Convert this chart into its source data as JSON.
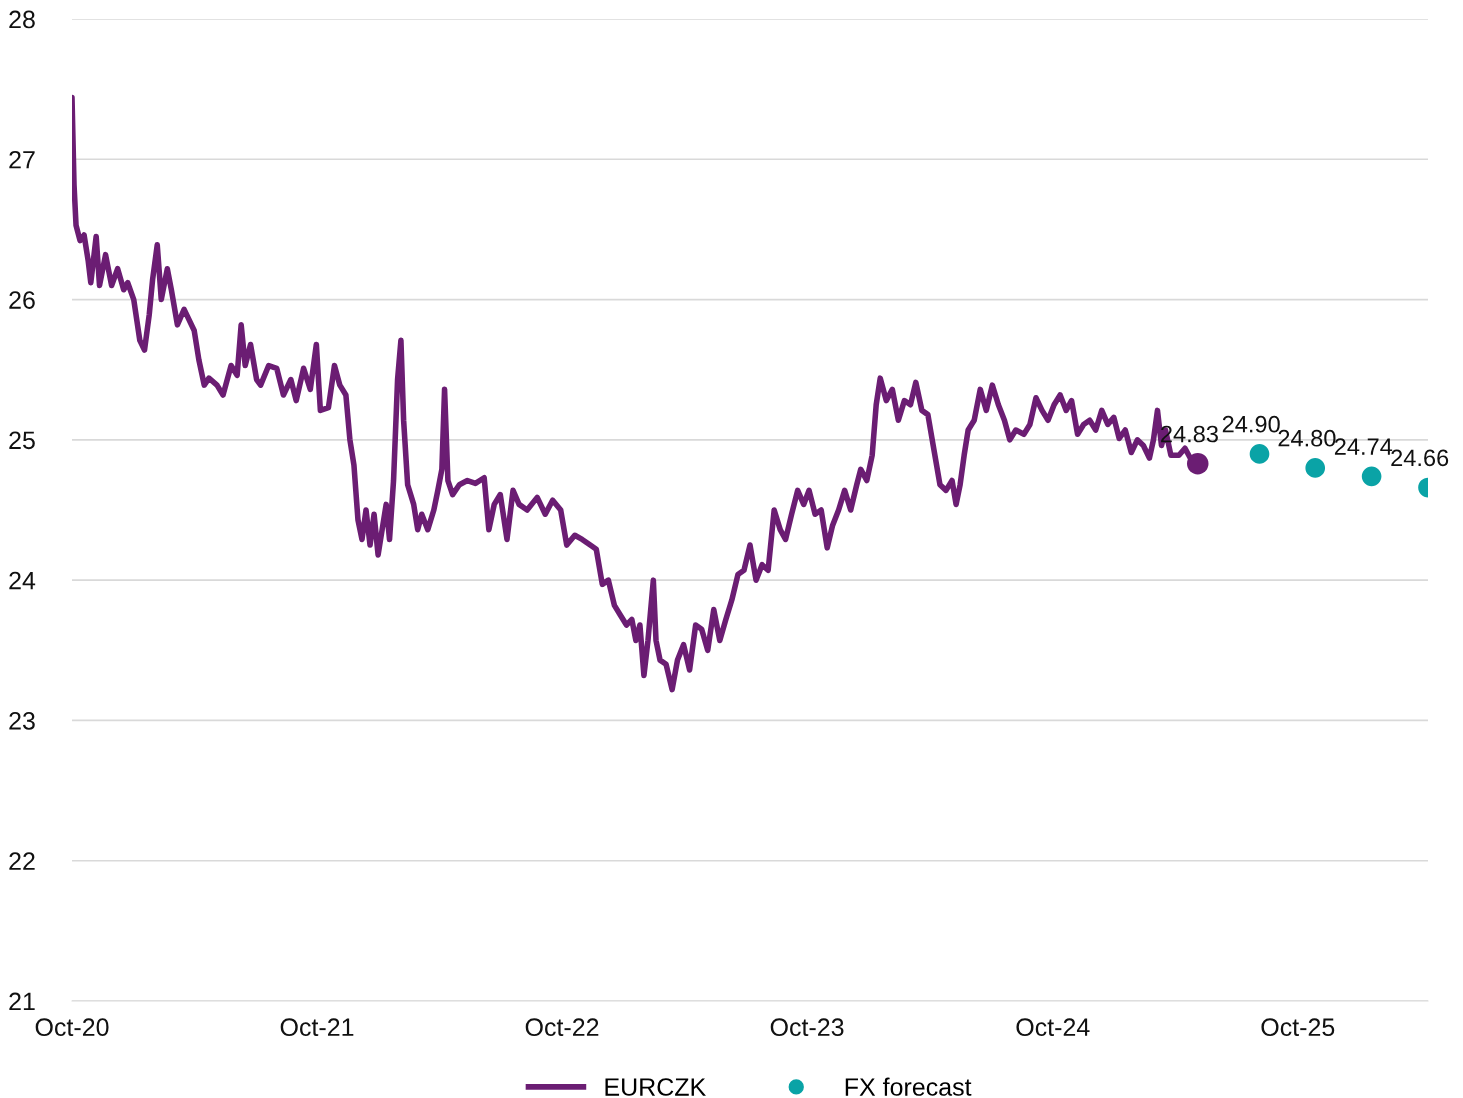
{
  "chart_data": {
    "type": "line",
    "xlim": [
      "2020-10-01",
      "2026-04-13"
    ],
    "xticks": [
      {
        "value": "2020-10-01",
        "label": "Oct-20"
      },
      {
        "value": "2021-10-01",
        "label": "Oct-21"
      },
      {
        "value": "2022-10-01",
        "label": "Oct-22"
      },
      {
        "value": "2023-10-01",
        "label": "Oct-23"
      },
      {
        "value": "2024-10-01",
        "label": "Oct-24"
      },
      {
        "value": "2025-10-01",
        "label": "Oct-25"
      }
    ],
    "ylim": [
      21,
      28
    ],
    "yticks": [
      21,
      22,
      23,
      24,
      25,
      26,
      27,
      28
    ],
    "grid": "y",
    "legend": "bottom",
    "series": [
      {
        "name": "EURCZK",
        "color": "#6b1d73",
        "x": [
          "2020-10-01",
          "2020-10-04",
          "2020-10-07",
          "2020-10-13",
          "2020-10-19",
          "2020-10-25",
          "2020-10-29",
          "2020-11-06",
          "2020-11-11",
          "2020-11-20",
          "2020-11-29",
          "2020-12-08",
          "2020-12-17",
          "2020-12-23",
          "2021-01-01",
          "2021-01-10",
          "2021-01-17",
          "2021-01-24",
          "2021-01-29",
          "2021-02-05",
          "2021-02-11",
          "2021-02-20",
          "2021-02-26",
          "2021-03-07",
          "2021-03-17",
          "2021-04-01",
          "2021-04-08",
          "2021-04-16",
          "2021-04-23",
          "2021-05-05",
          "2021-05-14",
          "2021-05-26",
          "2021-06-04",
          "2021-06-10",
          "2021-06-16",
          "2021-06-24",
          "2021-07-03",
          "2021-07-09",
          "2021-07-21",
          "2021-08-02",
          "2021-08-12",
          "2021-08-23",
          "2021-08-31",
          "2021-09-11",
          "2021-09-21",
          "2021-09-30",
          "2021-10-06",
          "2021-10-18",
          "2021-10-27",
          "2021-11-04",
          "2021-11-13",
          "2021-11-19",
          "2021-11-25",
          "2021-12-01",
          "2021-12-07",
          "2021-12-13",
          "2021-12-19",
          "2021-12-25",
          "2021-12-31",
          "2022-01-06",
          "2022-01-12",
          "2022-01-17",
          "2022-01-23",
          "2022-01-29",
          "2022-02-03",
          "2022-02-07",
          "2022-02-13",
          "2022-02-22",
          "2022-02-28",
          "2022-03-06",
          "2022-03-15",
          "2022-03-24",
          "2022-03-30",
          "2022-04-05",
          "2022-04-09",
          "2022-04-14",
          "2022-04-21",
          "2022-05-01",
          "2022-05-13",
          "2022-05-25",
          "2022-06-07",
          "2022-06-14",
          "2022-06-22",
          "2022-07-01",
          "2022-07-11",
          "2022-07-20",
          "2022-07-29",
          "2022-08-10",
          "2022-08-25",
          "2022-09-06",
          "2022-09-17",
          "2022-09-29",
          "2022-10-08",
          "2022-10-20",
          "2022-10-31",
          "2022-11-12",
          "2022-11-21",
          "2022-11-30",
          "2022-12-09",
          "2022-12-18",
          "2022-12-27",
          "2023-01-05",
          "2023-01-13",
          "2023-01-19",
          "2023-01-25",
          "2023-01-31",
          "2023-02-06",
          "2023-02-14",
          "2023-02-18",
          "2023-02-24",
          "2023-03-05",
          "2023-03-14",
          "2023-03-22",
          "2023-03-31",
          "2023-04-09",
          "2023-04-18",
          "2023-04-27",
          "2023-05-06",
          "2023-05-15",
          "2023-05-24",
          "2023-06-02",
          "2023-06-11",
          "2023-06-20",
          "2023-06-29",
          "2023-07-08",
          "2023-07-17",
          "2023-07-26",
          "2023-08-04",
          "2023-08-13",
          "2023-08-22",
          "2023-08-30",
          "2023-09-08",
          "2023-09-17",
          "2023-09-26",
          "2023-10-04",
          "2023-10-13",
          "2023-10-22",
          "2023-10-31",
          "2023-11-08",
          "2023-11-17",
          "2023-11-26",
          "2023-12-05",
          "2023-12-14",
          "2023-12-20",
          "2023-12-29",
          "2024-01-06",
          "2024-01-12",
          "2024-01-18",
          "2024-01-27",
          "2024-02-05",
          "2024-02-14",
          "2024-02-23",
          "2024-03-03",
          "2024-03-11",
          "2024-03-20",
          "2024-03-29",
          "2024-04-07",
          "2024-04-16",
          "2024-04-25",
          "2024-05-04",
          "2024-05-10",
          "2024-05-16",
          "2024-05-22",
          "2024-05-28",
          "2024-06-06",
          "2024-06-15",
          "2024-06-24",
          "2024-07-03",
          "2024-07-12",
          "2024-07-21",
          "2024-07-29",
          "2024-08-07",
          "2024-08-19",
          "2024-08-28",
          "2024-09-06",
          "2024-09-15",
          "2024-09-24",
          "2024-10-03",
          "2024-10-12",
          "2024-10-21",
          "2024-10-29",
          "2024-11-07",
          "2024-11-16",
          "2024-11-25",
          "2024-12-04",
          "2024-12-13",
          "2024-12-22",
          "2024-12-31",
          "2025-01-08",
          "2025-01-17",
          "2025-01-26",
          "2025-02-04",
          "2025-02-13",
          "2025-02-22",
          "2025-02-28",
          "2025-03-06",
          "2025-03-12",
          "2025-03-18",
          "2025-03-26",
          "2025-04-07",
          "2025-04-16",
          "2025-04-25",
          "2025-05-05"
        ],
        "values": [
          27.44,
          26.82,
          26.53,
          26.42,
          26.46,
          26.28,
          26.12,
          26.45,
          26.1,
          26.32,
          26.1,
          26.22,
          26.07,
          26.12,
          26.0,
          25.71,
          25.64,
          25.89,
          26.14,
          26.39,
          26.0,
          26.22,
          26.07,
          25.82,
          25.93,
          25.78,
          25.57,
          25.39,
          25.44,
          25.39,
          25.32,
          25.53,
          25.46,
          25.82,
          25.53,
          25.68,
          25.43,
          25.39,
          25.53,
          25.51,
          25.32,
          25.43,
          25.28,
          25.51,
          25.36,
          25.68,
          25.21,
          25.23,
          25.53,
          25.39,
          25.32,
          25.0,
          24.82,
          24.43,
          24.29,
          24.5,
          24.25,
          24.47,
          24.18,
          24.36,
          24.54,
          24.29,
          24.71,
          25.43,
          25.71,
          25.14,
          24.68,
          24.54,
          24.36,
          24.47,
          24.36,
          24.5,
          24.64,
          24.79,
          25.36,
          24.71,
          24.61,
          24.68,
          24.71,
          24.69,
          24.73,
          24.36,
          24.54,
          24.61,
          24.29,
          24.64,
          24.54,
          24.5,
          24.59,
          24.47,
          24.57,
          24.5,
          24.25,
          24.32,
          24.29,
          24.25,
          24.22,
          23.97,
          24.0,
          23.82,
          23.75,
          23.68,
          23.72,
          23.57,
          23.68,
          23.32,
          23.57,
          24.0,
          23.57,
          23.43,
          23.4,
          23.22,
          23.43,
          23.54,
          23.36,
          23.68,
          23.65,
          23.5,
          23.79,
          23.57,
          23.72,
          23.86,
          24.04,
          24.07,
          24.25,
          24.0,
          24.11,
          24.07,
          24.5,
          24.36,
          24.29,
          24.47,
          24.64,
          24.54,
          24.64,
          24.47,
          24.5,
          24.23,
          24.39,
          24.5,
          24.64,
          24.5,
          24.68,
          24.79,
          24.71,
          24.89,
          25.25,
          25.44,
          25.28,
          25.36,
          25.14,
          25.28,
          25.25,
          25.41,
          25.21,
          25.18,
          24.93,
          24.68,
          24.64,
          24.71,
          24.54,
          24.68,
          24.89,
          25.07,
          25.14,
          25.36,
          25.21,
          25.39,
          25.25,
          25.14,
          25.0,
          25.07,
          25.04,
          25.11,
          25.3,
          25.21,
          25.14,
          25.25,
          25.32,
          25.21,
          25.28,
          25.04,
          25.11,
          25.14,
          25.07,
          25.21,
          25.11,
          25.16,
          25.01,
          25.07,
          24.91,
          25.0,
          24.96,
          24.87,
          25.0,
          25.21,
          24.96,
          25.07,
          24.89,
          24.89,
          24.94,
          24.86,
          24.83
        ]
      },
      {
        "type": "scatter",
        "color": "#6b1d73",
        "x": [
          "2025-05-05"
        ],
        "values": [
          24.83
        ],
        "value_labels": [
          "24.83"
        ]
      },
      {
        "name": "FX forecast",
        "type": "scatter",
        "color": "#0aa3a6",
        "x": [
          "2025-08-05",
          "2025-10-27",
          "2026-01-19",
          "2026-04-13"
        ],
        "values": [
          24.9,
          24.8,
          24.74,
          24.66
        ],
        "value_labels": [
          "24.90",
          "24.80",
          "24.74",
          "24.66"
        ]
      }
    ]
  }
}
